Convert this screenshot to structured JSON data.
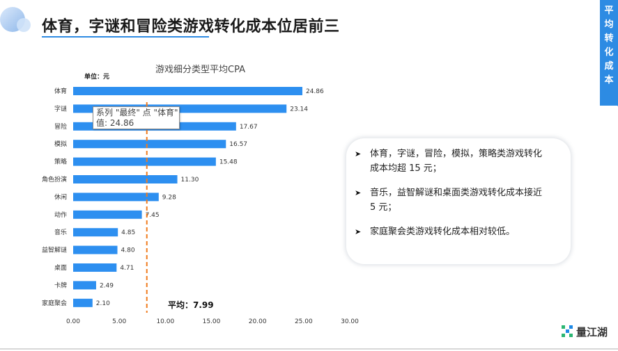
{
  "header": {
    "title": "体育，字谜和冒险类游戏转化成本位居前三",
    "side_tab": "平均转化成本"
  },
  "chart_data": {
    "type": "bar",
    "orientation": "horizontal",
    "title": "游戏细分类型平均CPA",
    "unit": "单位：元",
    "categories": [
      "体育",
      "字谜",
      "冒险",
      "模拟",
      "策略",
      "角色扮演",
      "休闲",
      "动作",
      "音乐",
      "益智解谜",
      "桌面",
      "卡牌",
      "家庭聚会"
    ],
    "values": [
      24.86,
      23.14,
      17.67,
      16.57,
      15.48,
      11.3,
      9.28,
      7.45,
      4.85,
      4.8,
      4.71,
      2.49,
      2.1
    ],
    "value_labels": [
      "24.86",
      "23.14",
      "17.67",
      "16.57",
      "15.48",
      "11.30",
      "9.28",
      "7.45",
      "4.85",
      "4.80",
      "4.71",
      "2.49",
      "2.10"
    ],
    "xlim": [
      0,
      30
    ],
    "x_ticks": [
      "0.00",
      "5.00",
      "10.00",
      "15.00",
      "20.00",
      "25.00",
      "30.00"
    ],
    "average_value": 7.99,
    "average_label": "平均：7.99",
    "bar_color": "#2d8ff0",
    "average_line_color": "#f07b1e",
    "grid": false,
    "legend": "none"
  },
  "tooltip": {
    "line1": "系列 \"最终\" 点 \"体育\"",
    "line2": "值: 24.86"
  },
  "notes": [
    "体育，字谜，冒险，模拟，策略类游戏转化成本均超 15 元；",
    "音乐，益智解谜和桌面类游戏转化成本接近 5 元；",
    "家庭聚会类游戏转化成本相对较低。"
  ],
  "brand": {
    "name": "量江湖"
  },
  "colors": {
    "accent": "#2d8be3"
  }
}
